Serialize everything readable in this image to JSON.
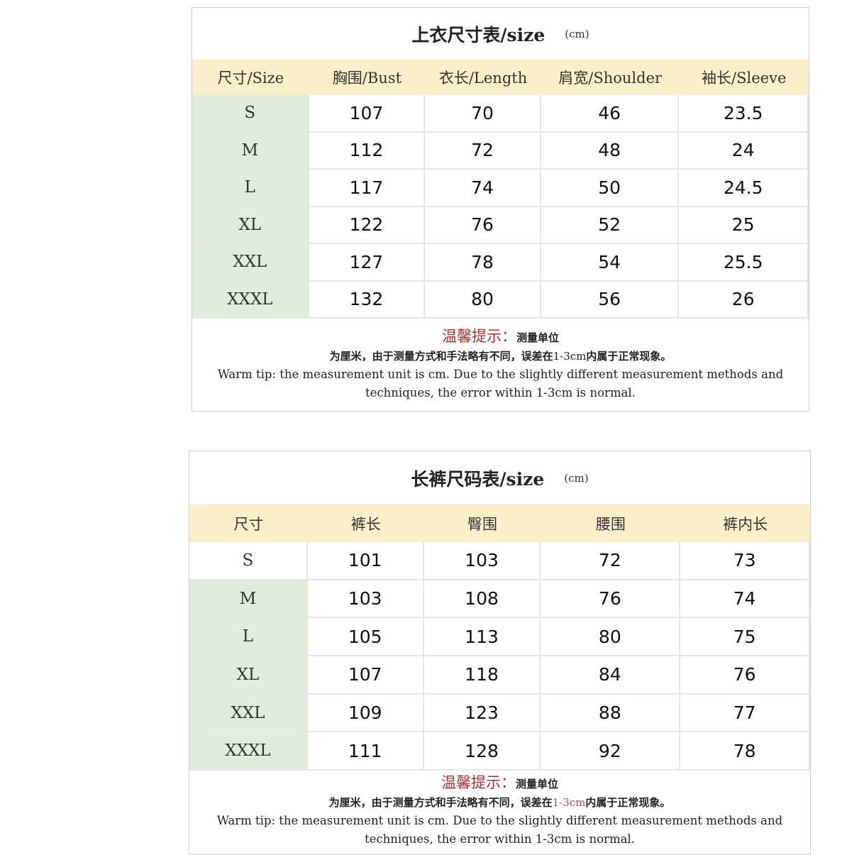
{
  "top_table": {
    "title": "上衣尺寸表/size",
    "unit": "(cm)",
    "headers": [
      "尺寸/Size",
      "胸围/Bust",
      "衣长/Length",
      "肩宽/Shoulder",
      "袖长/Sleeve"
    ],
    "rows": [
      [
        "S",
        "107",
        "70",
        "46",
        "23.5"
      ],
      [
        "M",
        "112",
        "72",
        "48",
        "24"
      ],
      [
        "L",
        "117",
        "74",
        "50",
        "24.5"
      ],
      [
        "XL",
        "122",
        "76",
        "52",
        "25"
      ],
      [
        "XXL",
        "127",
        "78",
        "54",
        "25.5"
      ],
      [
        "XXXL",
        "132",
        "80",
        "56",
        "26"
      ]
    ],
    "note": {
      "tip_label": "温馨提示：",
      "tip_text": "测量单位",
      "cn_line_a": "为厘米，由于测量方式和手法略有不同，误差在",
      "cn_range": "1-3cm",
      "cn_line_b": "内属于正常现象。",
      "en_line_1": "Warm tip: the measurement unit is cm. Due to the slightly different measurement methods and",
      "en_line_2": "techniques, the error within 1-3cm is normal."
    }
  },
  "bottom_table": {
    "title": "长裤尺码表/size",
    "unit": "(cm)",
    "headers": [
      "尺寸",
      "裤长",
      "臀围",
      "腰围",
      "裤内长"
    ],
    "rows": [
      [
        "S",
        "101",
        "103",
        "72",
        "73"
      ],
      [
        "M",
        "103",
        "108",
        "76",
        "74"
      ],
      [
        "L",
        "105",
        "113",
        "80",
        "75"
      ],
      [
        "XL",
        "107",
        "118",
        "84",
        "76"
      ],
      [
        "XXL",
        "109",
        "123",
        "88",
        "77"
      ],
      [
        "XXXL",
        "111",
        "128",
        "92",
        "78"
      ]
    ],
    "note": {
      "tip_label": "温馨提示：",
      "tip_text": "测量单位",
      "cn_line_a": "为厘米，由于测量方式和手法略有不同，误差在",
      "cn_range": "1-3cm",
      "cn_line_b": "内属于正常现象。",
      "en_line_1": "Warm tip: the measurement unit is cm. Due to the slightly different measurement methods and",
      "en_line_2": "techniques, the error within 1-3cm is normal."
    }
  },
  "colors": {
    "header_bg": "#fbefc9",
    "size_col_bg": "#deeedb",
    "tip_red": "#b03030"
  }
}
